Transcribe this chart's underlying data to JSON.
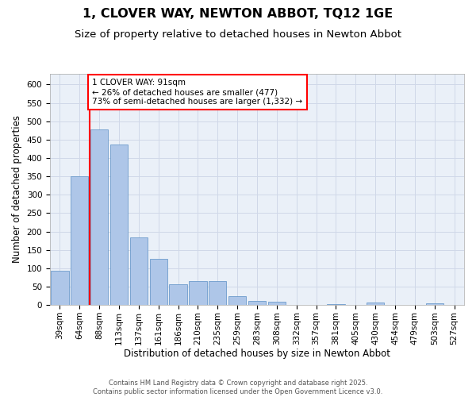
{
  "title1": "1, CLOVER WAY, NEWTON ABBOT, TQ12 1GE",
  "title2": "Size of property relative to detached houses in Newton Abbot",
  "xlabel": "Distribution of detached houses by size in Newton Abbot",
  "ylabel": "Number of detached properties",
  "categories": [
    "39sqm",
    "64sqm",
    "88sqm",
    "113sqm",
    "137sqm",
    "161sqm",
    "186sqm",
    "210sqm",
    "235sqm",
    "259sqm",
    "283sqm",
    "308sqm",
    "332sqm",
    "357sqm",
    "381sqm",
    "405sqm",
    "430sqm",
    "454sqm",
    "479sqm",
    "503sqm",
    "527sqm"
  ],
  "values": [
    93,
    350,
    477,
    437,
    183,
    125,
    57,
    65,
    65,
    25,
    12,
    8,
    0,
    0,
    3,
    0,
    6,
    0,
    0,
    4,
    0
  ],
  "bar_color": "#aec6e8",
  "bar_edge_color": "#5a8fc4",
  "annotation_text_line1": "1 CLOVER WAY: 91sqm",
  "annotation_text_line2": "← 26% of detached houses are smaller (477)",
  "annotation_text_line3": "73% of semi-detached houses are larger (1,332) →",
  "annotation_box_color": "white",
  "annotation_box_edge_color": "red",
  "vline_color": "red",
  "vline_x_index": 2,
  "ylim": [
    0,
    630
  ],
  "yticks": [
    0,
    50,
    100,
    150,
    200,
    250,
    300,
    350,
    400,
    450,
    500,
    550,
    600
  ],
  "grid_color": "#d0d8e8",
  "background_color": "#eaf0f8",
  "footer": "Contains HM Land Registry data © Crown copyright and database right 2025.\nContains public sector information licensed under the Open Government Licence v3.0.",
  "title_fontsize": 11.5,
  "subtitle_fontsize": 9.5,
  "axis_label_fontsize": 8.5,
  "tick_fontsize": 7.5,
  "annotation_fontsize": 7.5,
  "footer_fontsize": 6.0
}
